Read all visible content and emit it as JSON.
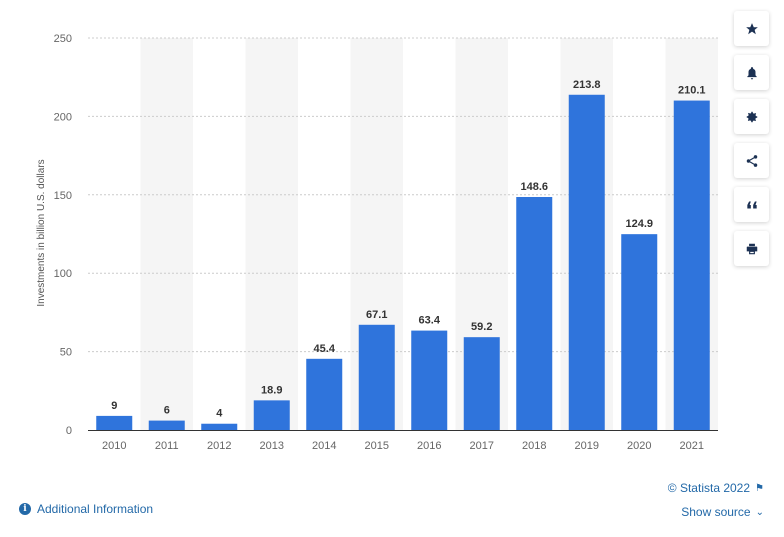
{
  "chart_data": {
    "type": "bar",
    "categories": [
      "2010",
      "2011",
      "2012",
      "2013",
      "2014",
      "2015",
      "2016",
      "2017",
      "2018",
      "2019",
      "2020",
      "2021"
    ],
    "values": [
      9,
      6,
      4,
      18.9,
      45.4,
      67.1,
      63.4,
      59.2,
      148.6,
      213.8,
      124.9,
      210.1
    ],
    "data_labels": [
      "9",
      "6",
      "4",
      "18.9",
      "45.4",
      "67.1",
      "63.4",
      "59.2",
      "148.6",
      "213.8",
      "124.9",
      "210.1"
    ],
    "ylabel": "Investments in billion U.S. dollars",
    "xlabel": "",
    "ylim": [
      0,
      250
    ],
    "yticks": [
      0,
      50,
      100,
      150,
      200,
      250
    ],
    "grid": true,
    "bar_color": "#2f74dc"
  },
  "sidebar": {
    "buttons": [
      {
        "name": "favorite",
        "icon": "star-icon"
      },
      {
        "name": "notification",
        "icon": "bell-icon"
      },
      {
        "name": "settings",
        "icon": "gear-icon"
      },
      {
        "name": "share",
        "icon": "share-icon"
      },
      {
        "name": "cite",
        "icon": "quote-icon"
      },
      {
        "name": "print",
        "icon": "printer-icon"
      }
    ]
  },
  "footer": {
    "additional_info": "Additional Information",
    "copyright": "© Statista 2022",
    "show_source": "Show source"
  },
  "colors": {
    "accent": "#2369a8",
    "bar": "#2f74dc",
    "grid": "#cccccc",
    "band": "#f5f5f5",
    "axis_text": "#666666",
    "label_text": "#333333"
  }
}
